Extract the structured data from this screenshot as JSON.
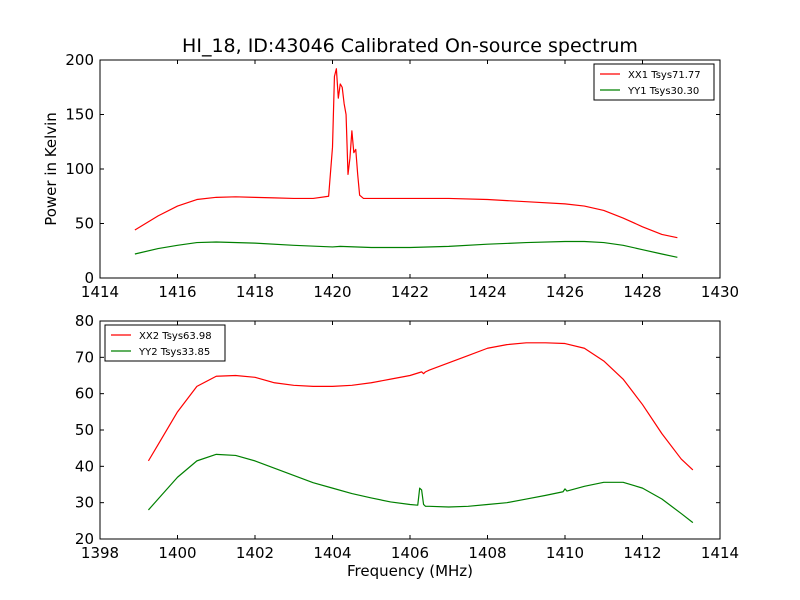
{
  "figure": {
    "title": "HI_18, ID:43046 Calibrated On-source spectrum"
  },
  "chart_data": [
    {
      "type": "line",
      "title": "HI_18, ID:43046 Calibrated On-source spectrum",
      "xlabel": "",
      "ylabel": "Power in Kelvin",
      "xlim": [
        1414,
        1430
      ],
      "ylim": [
        0,
        200
      ],
      "xticks": [
        1414,
        1416,
        1418,
        1420,
        1422,
        1424,
        1426,
        1428,
        1430
      ],
      "yticks": [
        0,
        50,
        100,
        150,
        200
      ],
      "grid": false,
      "legend_position": "top-right",
      "series": [
        {
          "name": "XX1 Tsys71.77",
          "color": "#ff0000",
          "x": [
            1414.9,
            1415.5,
            1416.0,
            1416.5,
            1417.0,
            1417.5,
            1418.0,
            1418.5,
            1419.0,
            1419.5,
            1419.9,
            1420.0,
            1420.05,
            1420.1,
            1420.15,
            1420.2,
            1420.25,
            1420.3,
            1420.35,
            1420.4,
            1420.45,
            1420.5,
            1420.55,
            1420.6,
            1420.65,
            1420.7,
            1420.8,
            1421.0,
            1422.0,
            1423.0,
            1424.0,
            1425.0,
            1426.0,
            1426.5,
            1427.0,
            1427.5,
            1428.0,
            1428.5,
            1428.9
          ],
          "y": [
            44,
            57,
            66,
            72,
            74,
            74.5,
            74,
            73.5,
            73,
            73,
            75,
            120,
            185,
            192,
            165,
            178,
            175,
            160,
            150,
            95,
            110,
            135,
            115,
            118,
            95,
            76,
            73,
            73,
            73,
            73,
            72,
            70,
            68,
            66,
            62,
            55,
            47,
            40,
            37
          ]
        },
        {
          "name": "YY1 Tsys30.30",
          "color": "#008000",
          "x": [
            1414.9,
            1415.5,
            1416.0,
            1416.5,
            1417.0,
            1418.0,
            1419.0,
            1420.0,
            1420.2,
            1421.0,
            1422.0,
            1423.0,
            1424.0,
            1425.0,
            1426.0,
            1426.5,
            1427.0,
            1427.5,
            1428.0,
            1428.5,
            1428.9
          ],
          "y": [
            22,
            27,
            30,
            32.5,
            33,
            32,
            30,
            28.5,
            29,
            28,
            28,
            29,
            31,
            32.5,
            33.5,
            33.5,
            32.5,
            30,
            26,
            22,
            19
          ]
        }
      ]
    },
    {
      "type": "line",
      "title": "",
      "xlabel": "Frequency (MHz)",
      "ylabel": "",
      "xlim": [
        1398,
        1414
      ],
      "ylim": [
        20,
        80
      ],
      "xticks": [
        1398,
        1400,
        1402,
        1404,
        1406,
        1408,
        1410,
        1412,
        1414
      ],
      "yticks": [
        20,
        30,
        40,
        50,
        60,
        70,
        80
      ],
      "grid": false,
      "legend_position": "top-left",
      "series": [
        {
          "name": "XX2 Tsys63.98",
          "color": "#ff0000",
          "x": [
            1399.25,
            1399.5,
            1400.0,
            1400.5,
            1401.0,
            1401.5,
            1402.0,
            1402.5,
            1403.0,
            1403.5,
            1404.0,
            1404.5,
            1405.0,
            1405.5,
            1406.0,
            1406.3,
            1406.35,
            1406.4,
            1406.5,
            1407.0,
            1407.5,
            1408.0,
            1408.5,
            1409.0,
            1409.5,
            1410.0,
            1410.5,
            1411.0,
            1411.5,
            1412.0,
            1412.5,
            1413.0,
            1413.3
          ],
          "y": [
            41.5,
            46,
            55,
            62,
            64.8,
            65,
            64.5,
            63,
            62.3,
            62,
            62,
            62.3,
            63,
            64,
            65,
            66,
            65.5,
            66,
            66.5,
            68.5,
            70.5,
            72.5,
            73.5,
            74,
            74,
            73.8,
            72.5,
            69,
            64,
            57,
            49,
            42,
            39
          ]
        },
        {
          "name": "YY2 Tsys33.85",
          "color": "#008000",
          "x": [
            1399.25,
            1399.5,
            1400.0,
            1400.5,
            1401.0,
            1401.5,
            1402.0,
            1402.5,
            1403.0,
            1403.5,
            1404.0,
            1404.5,
            1405.0,
            1405.5,
            1406.0,
            1406.2,
            1406.25,
            1406.3,
            1406.35,
            1406.4,
            1406.5,
            1407.0,
            1407.5,
            1408.0,
            1408.5,
            1409.0,
            1409.5,
            1409.95,
            1410.0,
            1410.05,
            1410.5,
            1411.0,
            1411.5,
            1412.0,
            1412.5,
            1413.0,
            1413.3
          ],
          "y": [
            28,
            31,
            37,
            41.5,
            43.3,
            43,
            41.5,
            39.5,
            37.5,
            35.5,
            34,
            32.5,
            31.3,
            30.2,
            29.5,
            29.3,
            34,
            33.5,
            29.5,
            29,
            29,
            28.8,
            29,
            29.5,
            30,
            31,
            32,
            33,
            33.8,
            33.2,
            34.5,
            35.6,
            35.6,
            34,
            31,
            27,
            24.5
          ]
        }
      ]
    }
  ]
}
